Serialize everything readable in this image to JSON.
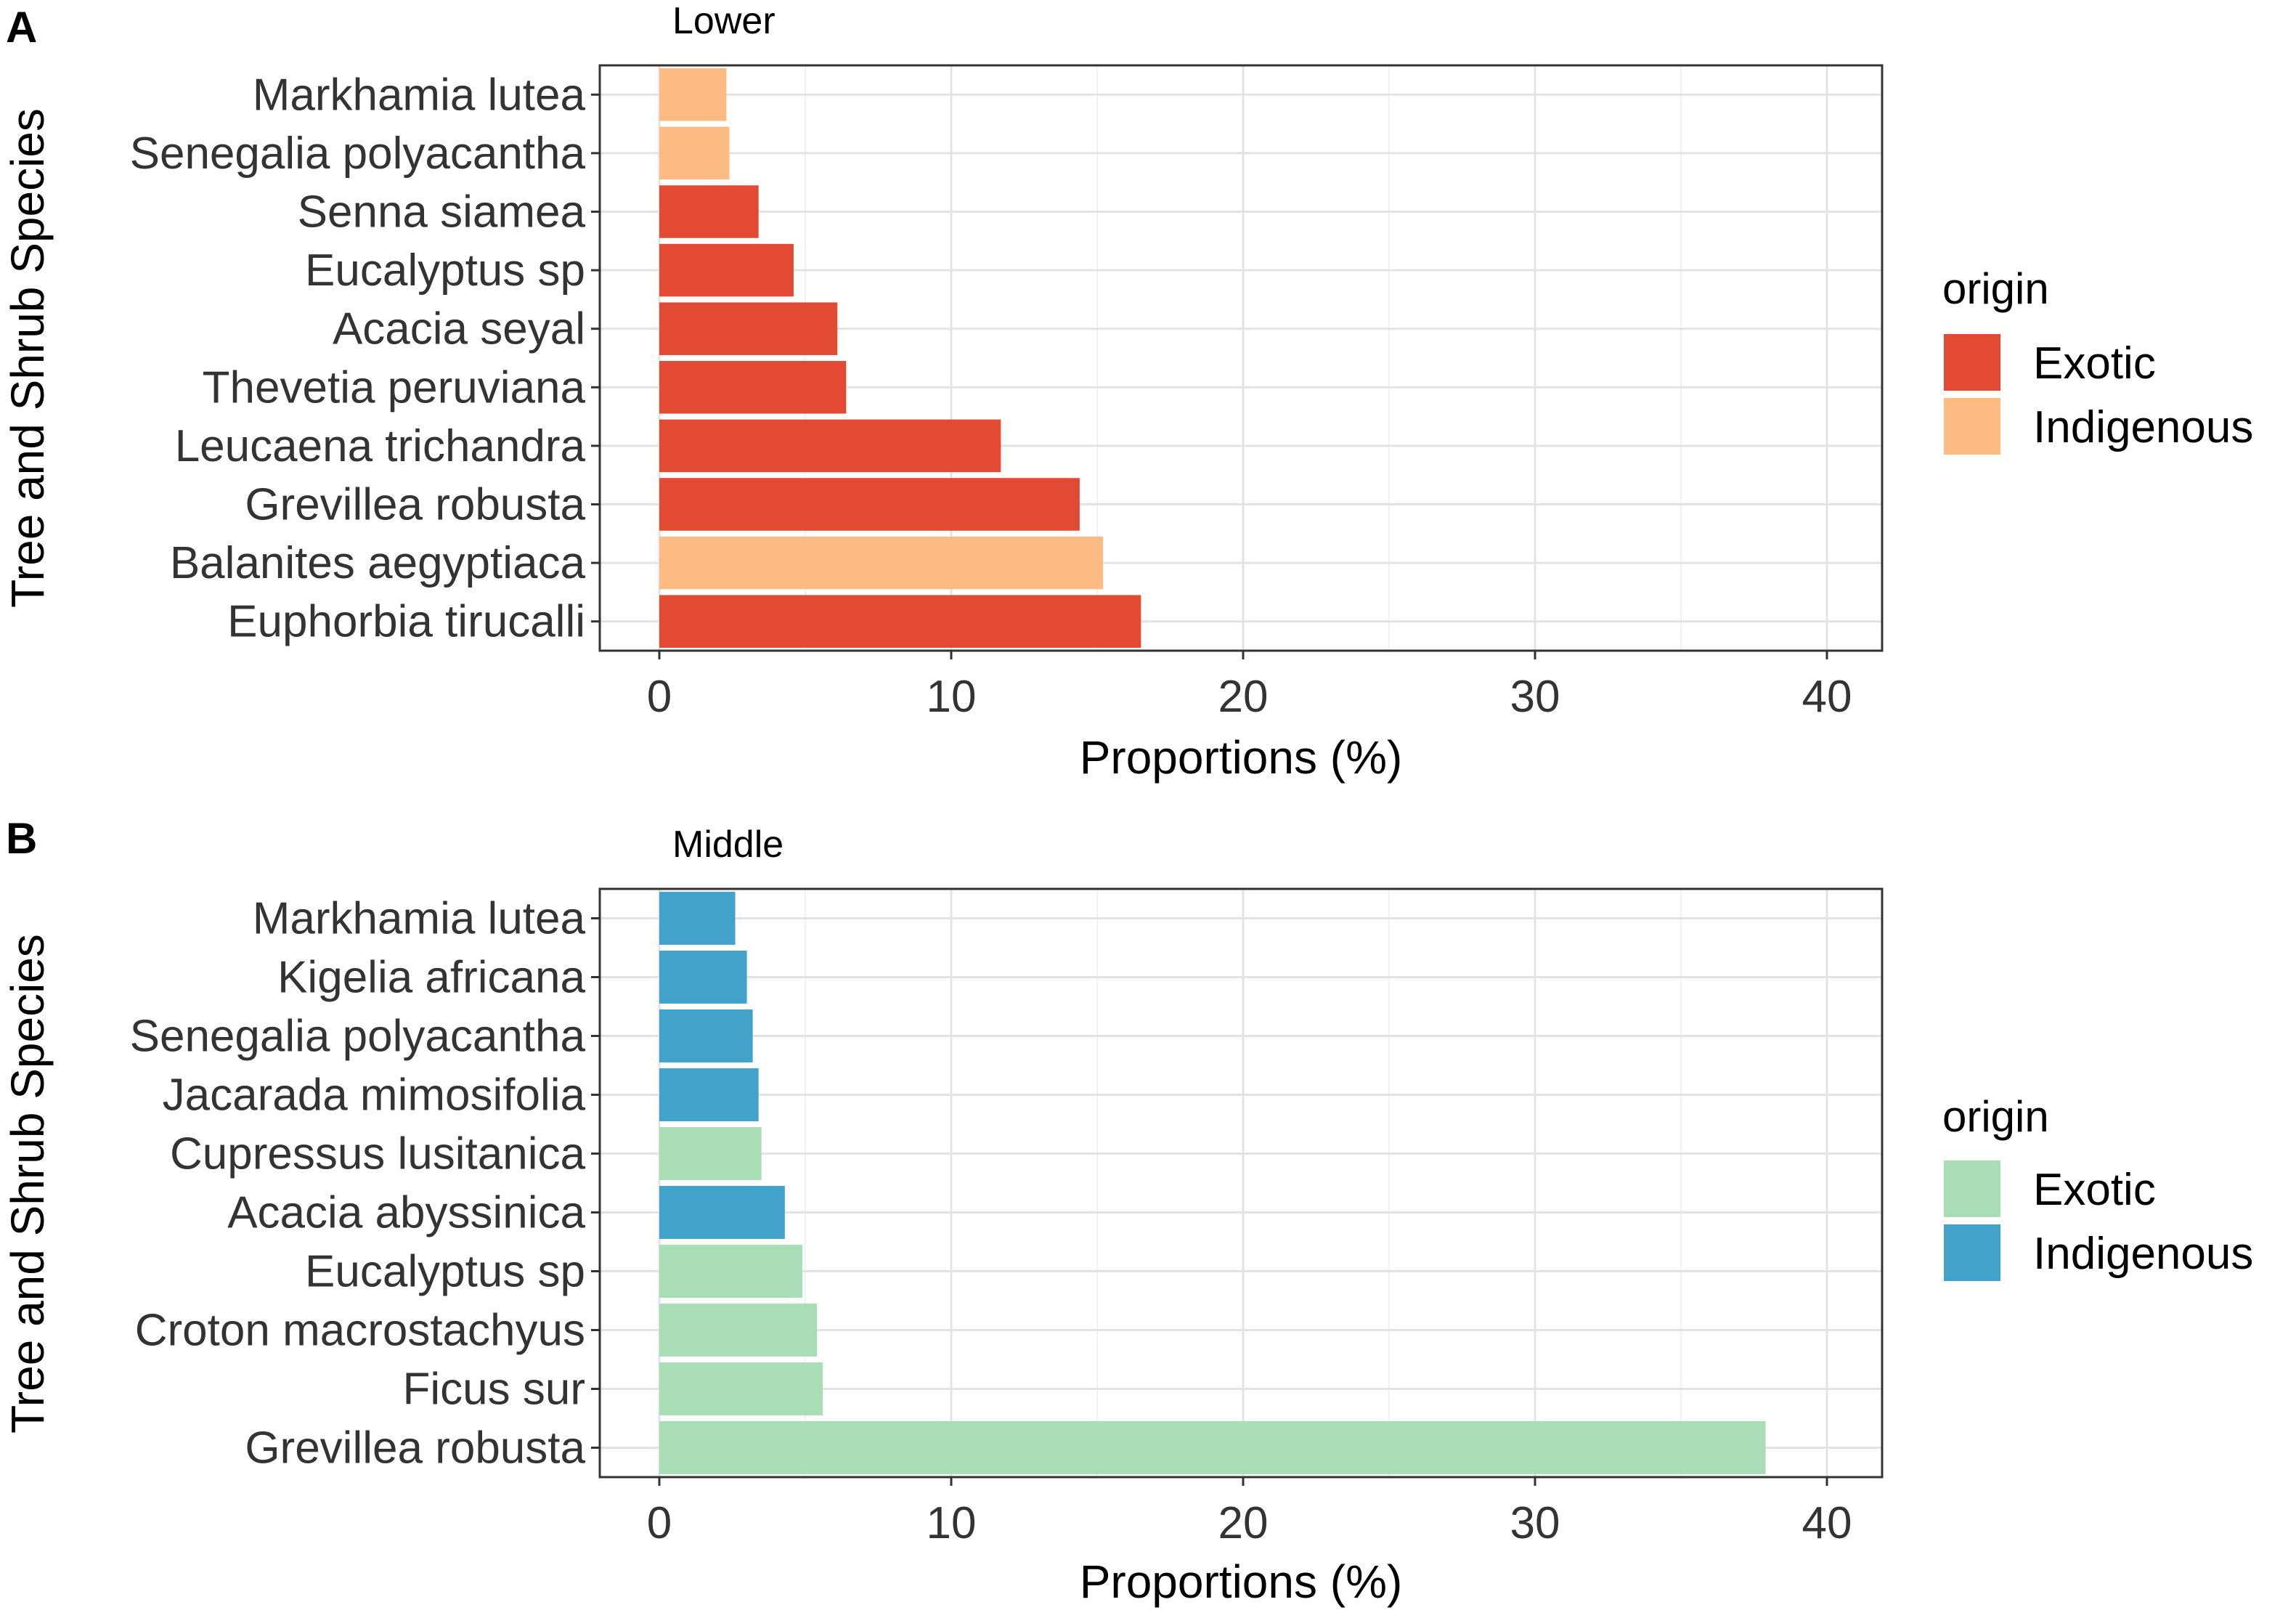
{
  "chart_data": [
    {
      "type": "bar",
      "panel_label": "A",
      "title": "Lower",
      "xlabel": "Proportions (%)",
      "ylabel": "Tree and Shrub Species",
      "xlim": [
        0,
        42
      ],
      "xticks": [
        "0",
        "10",
        "20",
        "30",
        "40"
      ],
      "xtick_values": [
        0,
        10,
        20,
        30,
        40
      ],
      "grid": true,
      "legend": {
        "title": "origin",
        "position": "right",
        "entries": [
          {
            "label": "Exotic",
            "color": "#E34A33"
          },
          {
            "label": "Indigenous",
            "color": "#FDBB84"
          }
        ]
      },
      "categories": [
        "Markhamia lutea",
        "Senegalia polyacantha",
        "Senna siamea",
        "Eucalyptus sp",
        "Acacia seyal",
        "Thevetia peruviana",
        "Leucaena trichandra",
        "Grevillea robusta",
        "Balanites aegyptiaca",
        "Euphorbia tirucalli"
      ],
      "values": [
        2.3,
        2.4,
        3.4,
        4.6,
        6.1,
        6.4,
        11.7,
        14.4,
        15.2,
        16.5
      ],
      "origin": [
        "Indigenous",
        "Indigenous",
        "Exotic",
        "Exotic",
        "Exotic",
        "Exotic",
        "Exotic",
        "Exotic",
        "Indigenous",
        "Exotic"
      ]
    },
    {
      "type": "bar",
      "panel_label": "B",
      "title": "Middle",
      "xlabel": "Proportions (%)",
      "ylabel": "Tree and Shrub Species",
      "xlim": [
        0,
        42
      ],
      "xticks": [
        "0",
        "10",
        "20",
        "30",
        "40"
      ],
      "xtick_values": [
        0,
        10,
        20,
        30,
        40
      ],
      "grid": true,
      "legend": {
        "title": "origin",
        "position": "right",
        "entries": [
          {
            "label": "Exotic",
            "color": "#A8DDB5"
          },
          {
            "label": "Indigenous",
            "color": "#43A2CA"
          }
        ]
      },
      "categories": [
        "Markhamia lutea",
        "Kigelia africana",
        "Senegalia polyacantha",
        "Jacarada mimosifolia",
        "Cupressus lusitanica",
        "Acacia abyssinica",
        "Eucalyptus sp",
        "Croton macrostachyus",
        "Ficus sur",
        "Grevillea robusta"
      ],
      "values": [
        2.6,
        3.0,
        3.2,
        3.4,
        3.5,
        4.3,
        4.9,
        5.4,
        5.6,
        37.9
      ],
      "origin": [
        "Indigenous",
        "Indigenous",
        "Indigenous",
        "Indigenous",
        "Exotic",
        "Indigenous",
        "Exotic",
        "Exotic",
        "Exotic",
        "Exotic"
      ]
    }
  ]
}
